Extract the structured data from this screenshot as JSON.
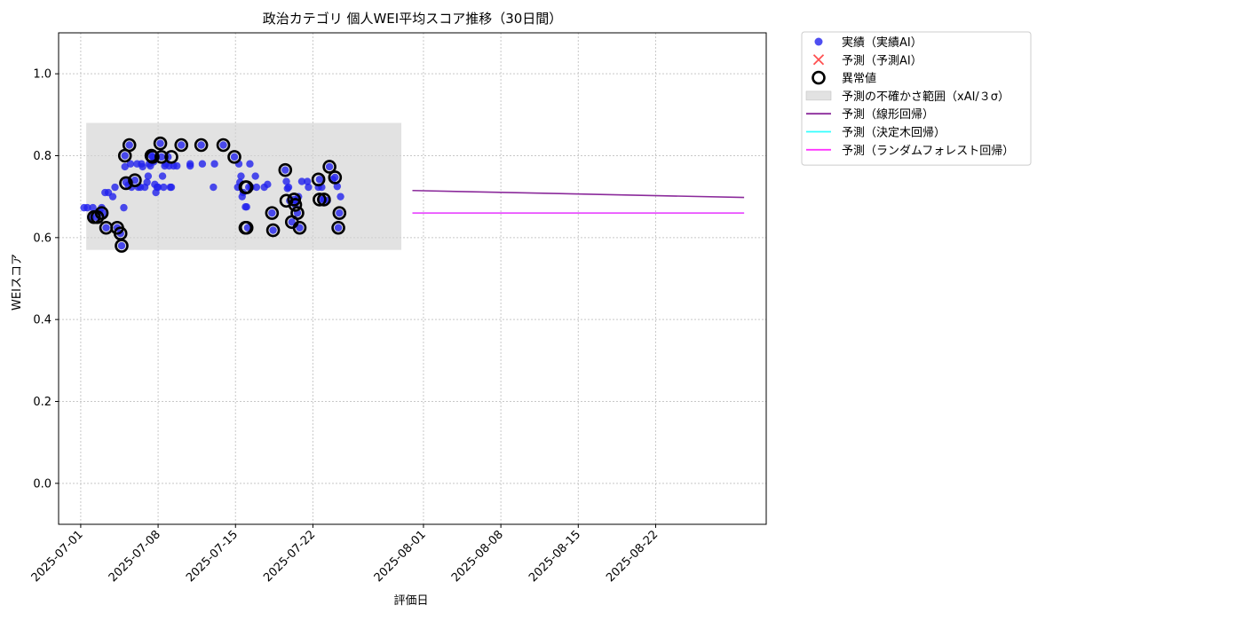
{
  "chart_data": {
    "type": "scatter",
    "title": "政治カテゴリ 個人WEI平均スコア推移（30日間）",
    "xlabel": "評価日",
    "ylabel": "WEIスコア",
    "xlim": [
      "2025-06-29",
      "2025-09-01"
    ],
    "ylim": [
      -0.1,
      1.1
    ],
    "y_ticks": [
      0.0,
      0.2,
      0.4,
      0.6,
      0.8,
      1.0
    ],
    "y_tick_labels": [
      "0.0",
      "0.2",
      "0.4",
      "0.6",
      "0.8",
      "1.0"
    ],
    "x_ticks": [
      "2025-07-01",
      "2025-07-08",
      "2025-07-15",
      "2025-07-22",
      "2025-08-01",
      "2025-08-08",
      "2025-08-15",
      "2025-08-22"
    ],
    "grid": true,
    "legend_position": "outside upper right",
    "colors": {
      "actual": "#2222ee",
      "predicted_marker": "#ff3333",
      "anomaly": "#000000",
      "uncertainty_band": "#d3d3d3",
      "linear": "#8b2a9b",
      "decision_tree": "#33ffff",
      "random_forest": "#ff33ff",
      "grid": "#c8c8c8"
    },
    "legend": [
      {
        "key": "actual",
        "label": "実績（実績AI）",
        "marker": "dot"
      },
      {
        "key": "predicted",
        "label": "予測（予測AI）",
        "marker": "x"
      },
      {
        "key": "anomaly",
        "label": "異常値",
        "marker": "ring"
      },
      {
        "key": "band",
        "label": "予測の不確かさ範囲（xAI/３σ）",
        "marker": "rect"
      },
      {
        "key": "linear",
        "label": "予測（線形回帰）",
        "marker": "line"
      },
      {
        "key": "tree",
        "label": "予測（決定木回帰）",
        "marker": "line"
      },
      {
        "key": "forest",
        "label": "予測（ランダムフォレスト回帰）",
        "marker": "line"
      }
    ],
    "uncertainty_band": {
      "x_start": "2025-07-01.5",
      "x_end": "2025-07-30",
      "y_low": 0.57,
      "y_high": 0.88
    },
    "series": [
      {
        "name": "実績（実績AI）",
        "kind": "scatter",
        "points": [
          [
            "2025-07-01.3",
            0.673
          ],
          [
            "2025-07-01.6",
            0.673
          ],
          [
            "2025-07-01.9",
            0.65
          ],
          [
            "2025-07-02.1",
            0.673
          ],
          [
            "2025-07-02.4",
            0.65
          ],
          [
            "2025-07-02.7",
            0.665
          ],
          [
            "2025-07-02.9",
            0.673
          ],
          [
            "2025-07-03.0",
            0.659
          ],
          [
            "2025-07-03.2",
            0.71
          ],
          [
            "2025-07-03.5",
            0.71
          ],
          [
            "2025-07-03.3",
            0.624
          ],
          [
            "2025-07-03.9",
            0.7
          ],
          [
            "2025-07-04.1",
            0.723
          ],
          [
            "2025-07-04.3",
            0.624
          ],
          [
            "2025-07-04.6",
            0.61
          ],
          [
            "2025-07-04.7",
            0.58
          ],
          [
            "2025-07-04.9",
            0.673
          ],
          [
            "2025-07-05.0",
            0.773
          ],
          [
            "2025-07-05.0",
            0.8
          ],
          [
            "2025-07-05.1",
            0.735
          ],
          [
            "2025-07-05.3",
            0.728
          ],
          [
            "2025-07-05.4",
            0.826
          ],
          [
            "2025-07-05.5",
            0.78
          ],
          [
            "2025-07-05.6",
            0.723
          ],
          [
            "2025-07-05.9",
            0.74
          ],
          [
            "2025-07-06.1",
            0.78
          ],
          [
            "2025-07-06.2",
            0.723
          ],
          [
            "2025-07-06.4",
            0.723
          ],
          [
            "2025-07-06.5",
            0.78
          ],
          [
            "2025-07-06.6",
            0.773
          ],
          [
            "2025-07-06.8",
            0.723
          ],
          [
            "2025-07-07.0",
            0.735
          ],
          [
            "2025-07-07.1",
            0.75
          ],
          [
            "2025-07-07.2",
            0.78
          ],
          [
            "2025-07-07.3",
            0.775
          ],
          [
            "2025-07-07.4",
            0.8
          ],
          [
            "2025-07-07.5",
            0.797
          ],
          [
            "2025-07-07.6",
            0.785
          ],
          [
            "2025-07-07.7",
            0.73
          ],
          [
            "2025-07-07.8",
            0.71
          ],
          [
            "2025-07-07.9",
            0.723
          ],
          [
            "2025-07-08.0",
            0.723
          ],
          [
            "2025-07-08.2",
            0.83
          ],
          [
            "2025-07-08.3",
            0.797
          ],
          [
            "2025-07-08.4",
            0.75
          ],
          [
            "2025-07-08.5",
            0.723
          ],
          [
            "2025-07-08.6",
            0.775
          ],
          [
            "2025-07-08.7",
            0.78
          ],
          [
            "2025-07-08.9",
            0.797
          ],
          [
            "2025-07-09.0",
            0.775
          ],
          [
            "2025-07-09.1",
            0.723
          ],
          [
            "2025-07-09.2",
            0.723
          ],
          [
            "2025-07-09.4",
            0.775
          ],
          [
            "2025-07-09.7",
            0.775
          ],
          [
            "2025-07-10.1",
            0.826
          ],
          [
            "2025-07-10.9",
            0.775
          ],
          [
            "2025-07-10.9",
            0.78
          ],
          [
            "2025-07-11.9",
            0.826
          ],
          [
            "2025-07-12.0",
            0.78
          ],
          [
            "2025-07-13.0",
            0.723
          ],
          [
            "2025-07-13.1",
            0.78
          ],
          [
            "2025-07-13.9",
            0.826
          ],
          [
            "2025-07-14.9",
            0.797
          ],
          [
            "2025-07-15.2",
            0.723
          ],
          [
            "2025-07-15.3",
            0.78
          ],
          [
            "2025-07-15.4",
            0.735
          ],
          [
            "2025-07-15.5",
            0.75
          ],
          [
            "2025-07-15.6",
            0.7
          ],
          [
            "2025-07-15.7",
            0.71
          ],
          [
            "2025-07-15.9",
            0.675
          ],
          [
            "2025-07-16.0",
            0.675
          ],
          [
            "2025-07-16.1",
            0.624
          ],
          [
            "2025-07-16.2",
            0.723
          ],
          [
            "2025-07-16.3",
            0.78
          ],
          [
            "2025-07-16.4",
            0.723
          ],
          [
            "2025-07-16.8",
            0.75
          ],
          [
            "2025-07-16.9",
            0.723
          ],
          [
            "2025-07-17.6",
            0.723
          ],
          [
            "2025-07-17.9",
            0.73
          ],
          [
            "2025-07-18.3",
            0.66
          ],
          [
            "2025-07-18.4",
            0.618
          ],
          [
            "2025-07-19.5",
            0.765
          ],
          [
            "2025-07-19.6",
            0.737
          ],
          [
            "2025-07-19.7",
            0.72
          ],
          [
            "2025-07-19.8",
            0.723
          ],
          [
            "2025-07-19.9",
            0.69
          ],
          [
            "2025-07-20.1",
            0.638
          ],
          [
            "2025-07-20.3",
            0.693
          ],
          [
            "2025-07-20.4",
            0.68
          ],
          [
            "2025-07-20.5",
            0.69
          ],
          [
            "2025-07-20.6",
            0.66
          ],
          [
            "2025-07-20.7",
            0.7
          ],
          [
            "2025-07-20.8",
            0.624
          ],
          [
            "2025-07-21.0",
            0.737
          ],
          [
            "2025-07-21.5",
            0.737
          ],
          [
            "2025-07-21.6",
            0.723
          ],
          [
            "2025-07-22.5",
            0.723
          ],
          [
            "2025-07-22.6",
            0.742
          ],
          [
            "2025-07-22.7",
            0.693
          ],
          [
            "2025-07-22.8",
            0.723
          ],
          [
            "2025-07-23.0",
            0.693
          ],
          [
            "2025-07-23.3",
            0.69
          ],
          [
            "2025-07-23.5",
            0.773
          ],
          [
            "2025-07-23.8",
            0.742
          ],
          [
            "2025-07-24.0",
            0.747
          ],
          [
            "2025-07-24.2",
            0.725
          ],
          [
            "2025-07-24.3",
            0.624
          ],
          [
            "2025-07-24.4",
            0.66
          ],
          [
            "2025-07-24.5",
            0.7
          ]
        ]
      },
      {
        "name": "異常値",
        "kind": "anomaly",
        "points": [
          [
            "2025-07-02.2",
            0.65
          ],
          [
            "2025-07-02.5",
            0.65
          ],
          [
            "2025-07-02.9",
            0.66
          ],
          [
            "2025-07-03.3",
            0.624
          ],
          [
            "2025-07-04.3",
            0.624
          ],
          [
            "2025-07-04.6",
            0.61
          ],
          [
            "2025-07-04.7",
            0.58
          ],
          [
            "2025-07-05.0",
            0.8
          ],
          [
            "2025-07-05.1",
            0.733
          ],
          [
            "2025-07-05.4",
            0.826
          ],
          [
            "2025-07-05.9",
            0.74
          ],
          [
            "2025-07-07.4",
            0.8
          ],
          [
            "2025-07-07.5",
            0.797
          ],
          [
            "2025-07-08.2",
            0.83
          ],
          [
            "2025-07-08.3",
            0.797
          ],
          [
            "2025-07-09.2",
            0.797
          ],
          [
            "2025-07-10.1",
            0.826
          ],
          [
            "2025-07-11.9",
            0.826
          ],
          [
            "2025-07-13.9",
            0.826
          ],
          [
            "2025-07-14.9",
            0.797
          ],
          [
            "2025-07-15.9",
            0.624
          ],
          [
            "2025-07-16.0",
            0.624
          ],
          [
            "2025-07-15.9",
            0.723
          ],
          [
            "2025-07-16.0",
            0.723
          ],
          [
            "2025-07-18.3",
            0.66
          ],
          [
            "2025-07-18.4",
            0.618
          ],
          [
            "2025-07-19.5",
            0.765
          ],
          [
            "2025-07-19.6",
            0.69
          ],
          [
            "2025-07-20.1",
            0.638
          ],
          [
            "2025-07-20.3",
            0.693
          ],
          [
            "2025-07-20.4",
            0.68
          ],
          [
            "2025-07-20.6",
            0.66
          ],
          [
            "2025-07-20.8",
            0.624
          ],
          [
            "2025-07-22.5",
            0.742
          ],
          [
            "2025-07-22.6",
            0.693
          ],
          [
            "2025-07-23.0",
            0.693
          ],
          [
            "2025-07-23.5",
            0.773
          ],
          [
            "2025-07-24.0",
            0.747
          ],
          [
            "2025-07-24.3",
            0.624
          ],
          [
            "2025-07-24.4",
            0.66
          ]
        ]
      },
      {
        "name": "予測（線形回帰）",
        "kind": "line",
        "points": [
          [
            "2025-07-31",
            0.715
          ],
          [
            "2025-08-30",
            0.698
          ]
        ]
      },
      {
        "name": "予測（決定木回帰）",
        "kind": "line",
        "points": [
          [
            "2025-07-31",
            0.66
          ],
          [
            "2025-08-30",
            0.66
          ]
        ]
      },
      {
        "name": "予測（ランダムフォレスト回帰）",
        "kind": "line",
        "points": [
          [
            "2025-07-31",
            0.66
          ],
          [
            "2025-08-30",
            0.66
          ]
        ]
      }
    ]
  }
}
